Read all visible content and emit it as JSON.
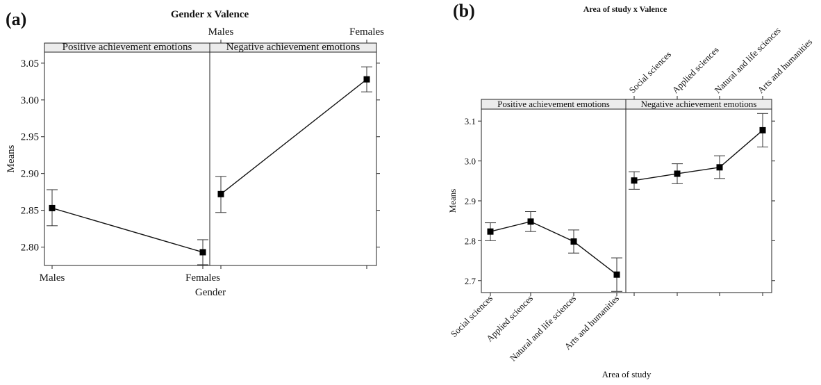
{
  "chart_data": [
    {
      "id": "a",
      "type": "line",
      "panel_label": "(a)",
      "title": "Gender x Valence",
      "xlabel": "Gender",
      "ylabel": "Means",
      "categories": [
        "Males",
        "Females"
      ],
      "ylim": [
        2.775,
        3.065
      ],
      "yticks": [
        2.8,
        2.85,
        2.9,
        2.95,
        3.0,
        3.05
      ],
      "ytick_labels": [
        "2.80",
        "2.85",
        "2.90",
        "2.95",
        "3.00",
        "3.05"
      ],
      "grid": false,
      "facets": [
        {
          "name": "Positive achievement emotions",
          "values": [
            2.853,
            2.793
          ],
          "err_low": [
            2.829,
            2.776
          ],
          "err_high": [
            2.878,
            2.81
          ]
        },
        {
          "name": "Negative achievement emotions",
          "values": [
            2.872,
            3.028
          ],
          "err_low": [
            2.847,
            3.011
          ],
          "err_high": [
            2.896,
            3.045
          ]
        }
      ]
    },
    {
      "id": "b",
      "type": "line",
      "panel_label": "(b)",
      "title": "Area of study x Valence",
      "xlabel": "Area of study",
      "ylabel": "Means",
      "categories": [
        "Social sciences",
        "Applied sciences",
        "Natural and life sciences",
        "Arts and humanities"
      ],
      "ylim": [
        2.67,
        3.13
      ],
      "yticks": [
        2.7,
        2.8,
        2.9,
        3.0,
        3.1
      ],
      "ytick_labels": [
        "2.7",
        "2.8",
        "2.9",
        "3.0",
        "3.1"
      ],
      "grid": false,
      "facets": [
        {
          "name": "Positive achievement emotions",
          "values": [
            2.823,
            2.848,
            2.798,
            2.715
          ],
          "err_low": [
            2.8,
            2.823,
            2.769,
            2.673
          ],
          "err_high": [
            2.845,
            2.873,
            2.827,
            2.757
          ]
        },
        {
          "name": "Negative achievement emotions",
          "values": [
            2.951,
            2.968,
            2.984,
            3.077
          ],
          "err_low": [
            2.929,
            2.943,
            2.956,
            3.035
          ],
          "err_high": [
            2.973,
            2.993,
            3.013,
            3.119
          ]
        }
      ]
    }
  ]
}
